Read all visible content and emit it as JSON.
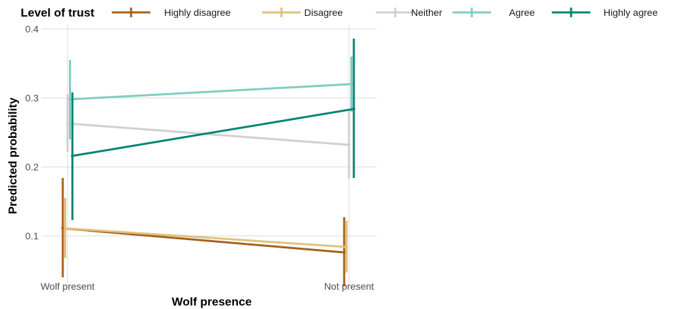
{
  "chart_data": {
    "type": "line",
    "title": "",
    "xlabel": "Wolf presence",
    "ylabel": "Predicted probability",
    "categories": [
      "Wolf present",
      "Not present"
    ],
    "ylim": [
      0.03,
      0.4
    ],
    "yticks": [
      0.1,
      0.2,
      0.3,
      0.4
    ],
    "ytick_labels": [
      "0.1",
      "0.2",
      "0.3",
      "0.4"
    ],
    "grid": true,
    "legend": {
      "title": "Level of trust",
      "placement": "top"
    },
    "series": [
      {
        "name": "Highly disagree",
        "color": "#a6611a",
        "values": [
          0.111,
          0.076
        ],
        "lower": [
          0.04,
          0.027
        ],
        "upper": [
          0.184,
          0.127
        ]
      },
      {
        "name": "Disagree",
        "color": "#dfc27d",
        "values": [
          0.111,
          0.084
        ],
        "lower": [
          0.068,
          0.047
        ],
        "upper": [
          0.155,
          0.122
        ]
      },
      {
        "name": "Neither",
        "color": "#d0d0d0",
        "values": [
          0.263,
          0.232
        ],
        "lower": [
          0.222,
          0.183
        ],
        "upper": [
          0.305,
          0.282
        ]
      },
      {
        "name": "Agree",
        "color": "#80cdc1",
        "values": [
          0.298,
          0.32
        ],
        "lower": [
          0.24,
          0.28
        ],
        "upper": [
          0.355,
          0.36
        ]
      },
      {
        "name": "Highly agree",
        "color": "#018571",
        "values": [
          0.216,
          0.284
        ],
        "lower": [
          0.123,
          0.184
        ],
        "upper": [
          0.308,
          0.386
        ]
      }
    ]
  }
}
